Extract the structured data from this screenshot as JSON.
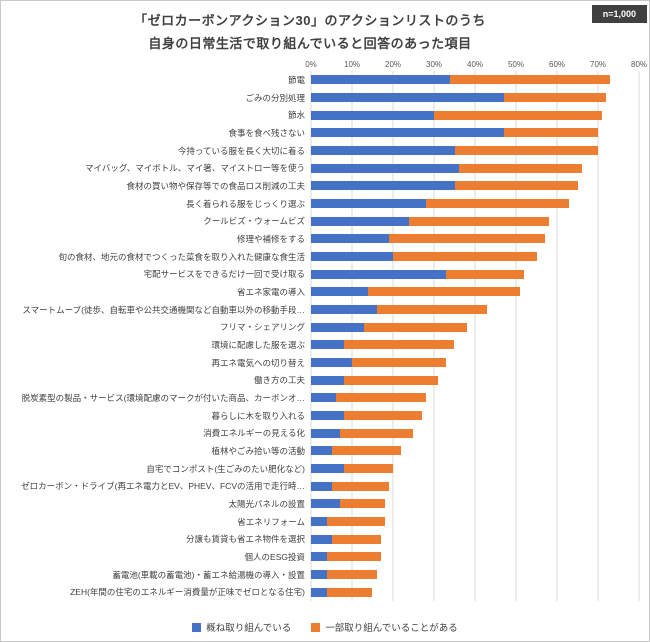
{
  "title": {
    "line1": "「ゼロカーボンアクション30」のアクションリストのうち",
    "line2": "自身の日常生活で取り組んでいると回答のあった項目"
  },
  "badge": "n=1,000",
  "legend": [
    {
      "label": "概ね取り組んでいる",
      "color": "#4472C4"
    },
    {
      "label": "一部取り組んでいることがある",
      "color": "#ED7D31"
    }
  ],
  "chart_data": {
    "type": "bar",
    "orientation": "horizontal",
    "stacked": true,
    "unit": "%",
    "xlim": [
      0,
      80
    ],
    "x_ticks": [
      "0%",
      "10%",
      "20%",
      "30%",
      "40%",
      "50%",
      "60%",
      "70%",
      "80%"
    ],
    "grid": true,
    "legend_position": "bottom",
    "categories": [
      "節電",
      "ごみの分別処理",
      "節水",
      "食事を食べ残さない",
      "今持っている服を長く大切に着る",
      "マイバッグ、マイボトル、マイ箸、マイストロー等を使う",
      "食材の買い物や保存等での食品ロス削減の工夫",
      "長く着られる服をじっくり選ぶ",
      "クールビズ・ウォームビズ",
      "修理や補修をする",
      "旬の食材、地元の食材でつくった菜食を取り入れた健康な食生活",
      "宅配サービスをできるだけ一回で受け取る",
      "省エネ家電の導入",
      "スマートムーブ(徒歩、自転車や公共交通機関など自動車以外の移動手段…",
      "フリマ・シェアリング",
      "環境に配慮した服を選ぶ",
      "再エネ電気への切り替え",
      "働き方の工夫",
      "脱炭素型の製品・サービス(環境配慮のマークが付いた商品、カーボンオ…",
      "暮らしに木を取り入れる",
      "消費エネルギーの見える化",
      "植林やごみ拾い等の活動",
      "自宅でコンポスト(生ごみのたい肥化など)",
      "ゼロカーボン・ドライブ(再エネ電力とEV、PHEV、FCVの活用で走行時…",
      "太陽光パネルの設置",
      "省エネリフォーム",
      "分譲も賃貸も省エネ物件を選択",
      "個人のESG投資",
      "蓄電池(車載の蓄電池)・蓄エネ給湯機の導入・設置",
      "ZEH(年間の住宅のエネルギー消費量が正味でゼロとなる住宅)"
    ],
    "series": [
      {
        "name": "概ね取り組んでいる",
        "color": "#4472C4",
        "values": [
          34,
          47,
          30,
          47,
          35,
          36,
          35,
          28,
          24,
          19,
          20,
          33,
          14,
          16,
          13,
          8,
          10,
          8,
          6,
          8,
          7,
          5,
          8,
          5,
          7,
          4,
          5,
          4,
          4,
          4
        ]
      },
      {
        "name": "一部取り組んでいることがある",
        "color": "#ED7D31",
        "values": [
          39,
          25,
          41,
          23,
          35,
          30,
          30,
          35,
          34,
          38,
          35,
          19,
          37,
          27,
          25,
          27,
          23,
          23,
          22,
          19,
          18,
          17,
          12,
          14,
          11,
          14,
          12,
          13,
          12,
          11
        ]
      }
    ]
  }
}
